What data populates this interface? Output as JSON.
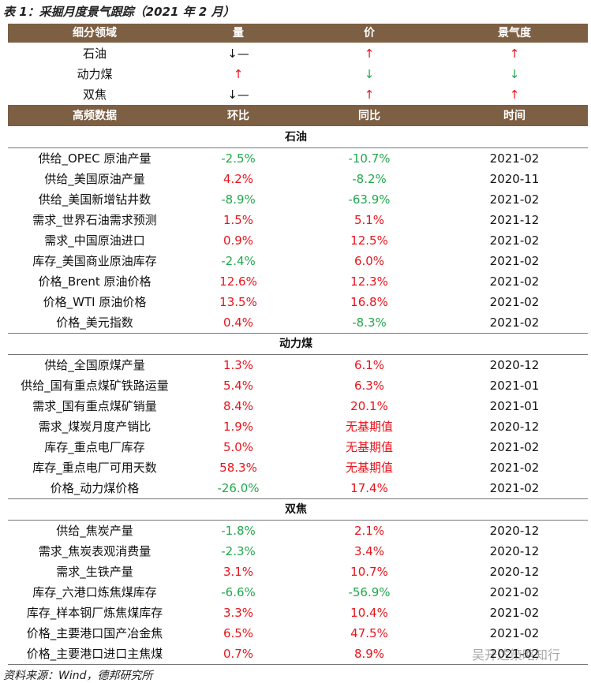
{
  "title": "表 1：采掘月度景气跟踪（2021 年 2 月）",
  "summary": {
    "header": [
      "细分领域",
      "量",
      "价",
      "景气度"
    ],
    "rows": [
      [
        "石油",
        "↓—",
        "↑",
        "↑"
      ],
      [
        "动力煤",
        "↑",
        "↓",
        "↓"
      ],
      [
        "双焦",
        "↓—",
        "↑",
        "↑"
      ]
    ]
  },
  "detail": {
    "header": [
      "高频数据",
      "环比",
      "同比",
      "时间"
    ],
    "sections": [
      {
        "name": "石油",
        "rows": [
          [
            "供给_OPEC 原油产量",
            "-2.5%",
            "-10.7%",
            "2021-02"
          ],
          [
            "供给_美国原油产量",
            "4.2%",
            "-8.2%",
            "2020-11"
          ],
          [
            "供给_美国新增钻井数",
            "-8.9%",
            "-63.9%",
            "2021-02"
          ],
          [
            "需求_世界石油需求预测",
            "1.5%",
            "5.1%",
            "2021-12"
          ],
          [
            "需求_中国原油进口",
            "0.9%",
            "12.5%",
            "2021-02"
          ],
          [
            "库存_美国商业原油库存",
            "-2.4%",
            "6.0%",
            "2021-02"
          ],
          [
            "价格_Brent 原油价格",
            "12.6%",
            "12.3%",
            "2021-02"
          ],
          [
            "价格_WTI 原油价格",
            "13.5%",
            "16.8%",
            "2021-02"
          ],
          [
            "价格_美元指数",
            "0.4%",
            "-8.3%",
            "2021-02"
          ]
        ]
      },
      {
        "name": "动力煤",
        "rows": [
          [
            "供给_全国原煤产量",
            "1.3%",
            "6.1%",
            "2020-12"
          ],
          [
            "供给_国有重点煤矿铁路运量",
            "5.4%",
            "6.3%",
            "2021-01"
          ],
          [
            "需求_国有重点煤矿销量",
            "8.4%",
            "20.1%",
            "2021-01"
          ],
          [
            "需求_煤炭月度产销比",
            "1.9%",
            "无基期值",
            "2020-12"
          ],
          [
            "库存_重点电厂库存",
            "5.0%",
            "无基期值",
            "2021-02"
          ],
          [
            "库存_重点电厂可用天数",
            "58.3%",
            "无基期值",
            "2021-02"
          ],
          [
            "价格_动力煤价格",
            "-26.0%",
            "17.4%",
            "2021-02"
          ]
        ]
      },
      {
        "name": "双焦",
        "rows": [
          [
            "供给_焦炭产量",
            "-1.8%",
            "2.1%",
            "2020-12"
          ],
          [
            "需求_焦炭表观消费量",
            "-2.3%",
            "3.4%",
            "2020-12"
          ],
          [
            "需求_生铁产量",
            "3.1%",
            "10.7%",
            "2020-12"
          ],
          [
            "库存_六港口炼焦煤库存",
            "-6.6%",
            "-56.9%",
            "2021-02"
          ],
          [
            "库存_样本钢厂炼焦煤库存",
            "3.3%",
            "10.4%",
            "2021-02"
          ],
          [
            "价格_主要港口国产冶金焦",
            "6.5%",
            "47.5%",
            "2021-02"
          ],
          [
            "价格_主要港口进口主焦煤",
            "0.7%",
            "8.9%",
            "2021-02"
          ]
        ]
      }
    ]
  },
  "source": "资料来源：Wind，德邦研究所",
  "watermark": "吴开达策略知行"
}
